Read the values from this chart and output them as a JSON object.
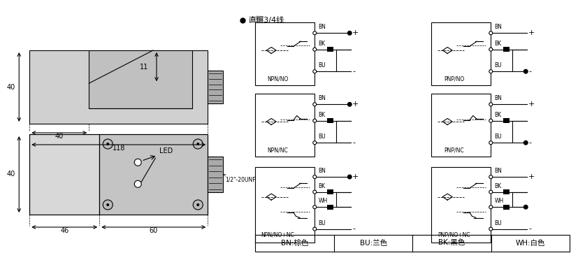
{
  "bg_color": "#ffffff",
  "line_color": "#000000",
  "title_text": "直冁3/4线",
  "legend_items": [
    "BN:棕色",
    "BU:兰色",
    "BK:黑色",
    "WH:白色"
  ],
  "circuit_labels": [
    "NPN/NO",
    "NPN/NC",
    "NPN/NO+NC",
    "PNP/NO",
    "PNP/NC",
    "PNP/NO+NC"
  ],
  "dim_labels": {
    "top_left": "46",
    "top_right": "60",
    "top_height": "40",
    "bot_left": "40",
    "bot_total": "118",
    "bot_height": "40",
    "bot_notch": "11"
  }
}
